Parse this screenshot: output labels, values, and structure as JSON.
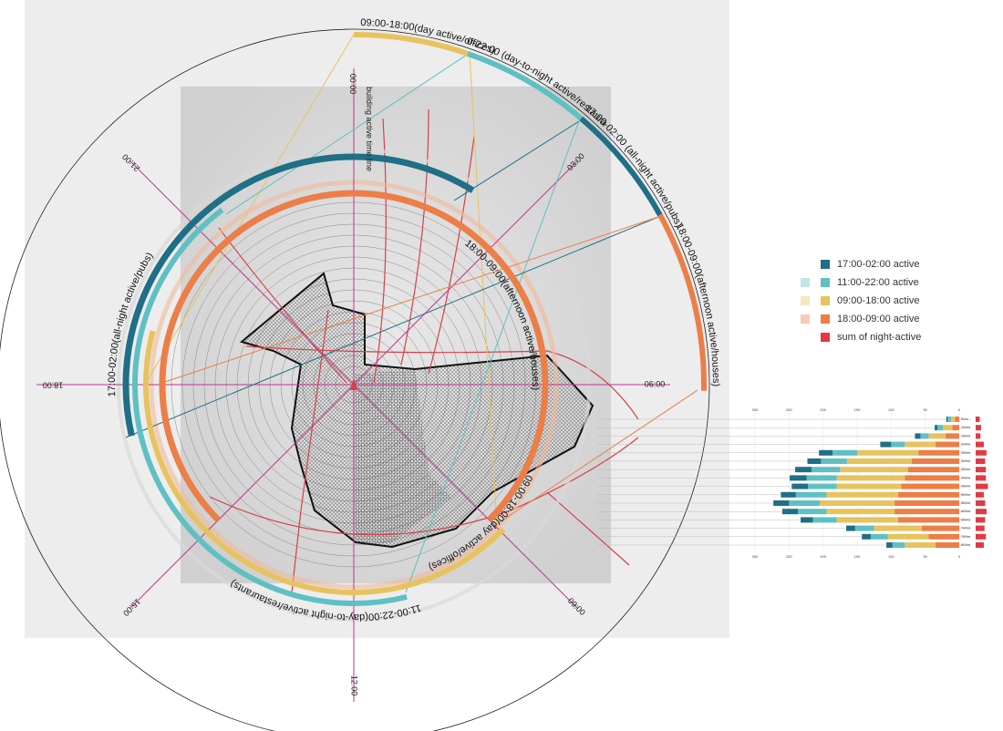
{
  "diagram": {
    "axis_title": "building active time line",
    "time_labels": [
      "00:00",
      "03:00",
      "06:00",
      "09:00",
      "12:00",
      "15:00",
      "18:00",
      "21:00"
    ],
    "ring_labels": [
      "09:00-18:00(day active/offices)",
      "11:00-22:00 (day-to-night active/restaurants)",
      "17:00-02:00 (all-night active/pubs)",
      "18:00-09:00(afternoon active/houses)",
      "17:00-02:00(all-night active/pubs)",
      "11:00-22:00(day-to-night active/restaurants)",
      "09:00-18:00(day active/offices)",
      "18:00-09:00(afternoon active/houses)"
    ]
  },
  "chart_data": {
    "type": "stacked-bar",
    "categories": [
      "50m",
      "100m",
      "150m",
      "200m",
      "250m",
      "300m",
      "350m",
      "400m",
      "450m",
      "500m",
      "550m",
      "600m",
      "650m",
      "700m",
      "750m",
      "800m"
    ],
    "series": [
      {
        "name": "18:00-09:00 active",
        "color": "#ec7e47",
        "values": [
          6,
          10,
          20,
          35,
          60,
          70,
          75,
          80,
          85,
          90,
          95,
          95,
          90,
          55,
          45,
          35
        ]
      },
      {
        "name": "09:00-18:00 active",
        "color": "#e7c35f",
        "values": [
          6,
          14,
          25,
          45,
          90,
          95,
          100,
          100,
          95,
          105,
          110,
          100,
          90,
          70,
          60,
          45
        ]
      },
      {
        "name": "11:00-22:00 active",
        "color": "#5fc0c3",
        "values": [
          5,
          8,
          12,
          20,
          36,
          38,
          42,
          44,
          42,
          45,
          45,
          42,
          35,
          28,
          25,
          18
        ]
      },
      {
        "name": "17:00-02:00 active",
        "color": "#1f6f86",
        "values": [
          2,
          4,
          8,
          16,
          20,
          20,
          24,
          25,
          24,
          22,
          23,
          23,
          18,
          13,
          13,
          9
        ]
      },
      {
        "name": "sum of night-active",
        "color": "#e03a45",
        "values": [
          6,
          8,
          7,
          12,
          16,
          14,
          15,
          15,
          18,
          12,
          14,
          16,
          14,
          13,
          15,
          12
        ]
      }
    ],
    "xlim": [
      0,
      300
    ],
    "xticks": [
      300,
      250,
      200,
      150,
      100,
      50,
      0
    ]
  }
}
